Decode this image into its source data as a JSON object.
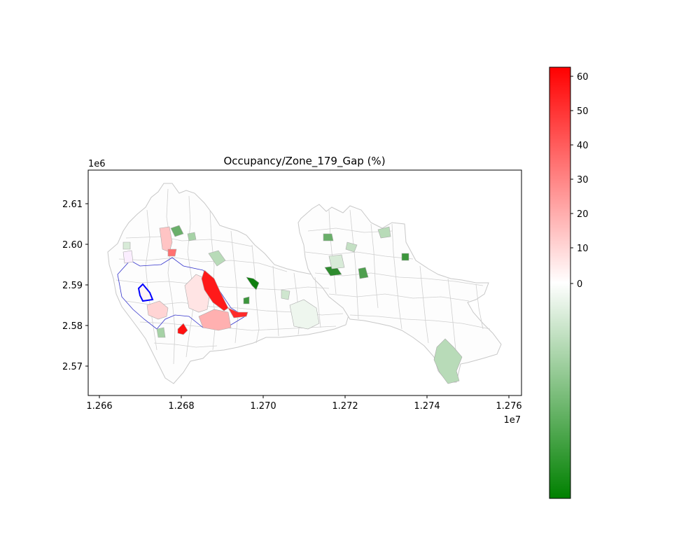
{
  "figure": {
    "title": "Occupancy/Zone_179_Gap (%)",
    "x_axis": {
      "offset_label": "1e7",
      "ticks": [
        {
          "value": 1.266,
          "label": "1.266"
        },
        {
          "value": 1.268,
          "label": "1.268"
        },
        {
          "value": 1.27,
          "label": "1.270"
        },
        {
          "value": 1.272,
          "label": "1.272"
        },
        {
          "value": 1.274,
          "label": "1.274"
        },
        {
          "value": 1.276,
          "label": "1.276"
        }
      ]
    },
    "y_axis": {
      "offset_label": "1e6",
      "ticks": [
        {
          "value": 2.57,
          "label": "2.57"
        },
        {
          "value": 2.58,
          "label": "2.58"
        },
        {
          "value": 2.59,
          "label": "2.59"
        },
        {
          "value": 2.6,
          "label": "2.60"
        },
        {
          "value": 2.61,
          "label": "2.61"
        }
      ]
    },
    "colorbar": {
      "ticks": [
        {
          "value": 60,
          "label": "60"
        },
        {
          "value": 50,
          "label": "50"
        },
        {
          "value": 40,
          "label": "40"
        },
        {
          "value": 30,
          "label": "30"
        },
        {
          "value": 20,
          "label": "20"
        },
        {
          "value": 10,
          "label": "10"
        },
        {
          "value": 0,
          "label": "0"
        }
      ],
      "colors": {
        "high": "#ff0000",
        "mid": "#ffffff",
        "low": "#008000"
      }
    },
    "map_colors": {
      "boundary": "#c8c8c8",
      "highlight_outline": "#0000ff",
      "region_outline": "#3333cc"
    }
  }
}
